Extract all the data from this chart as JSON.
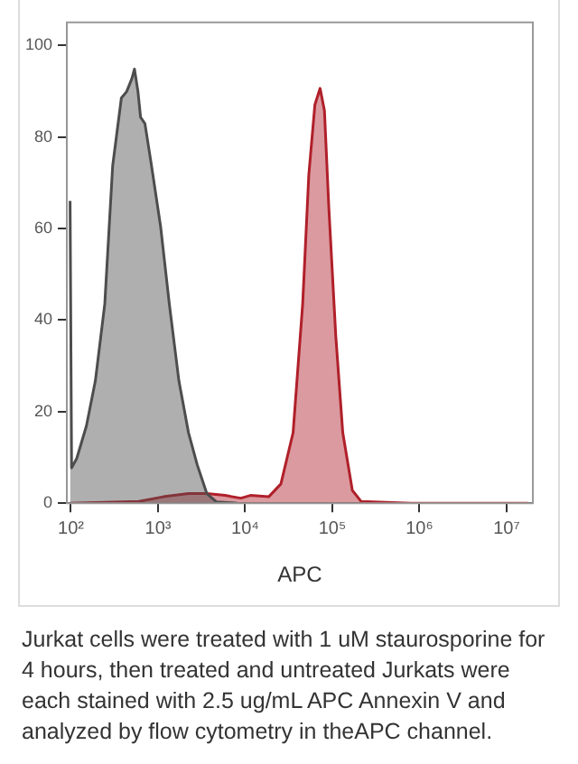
{
  "chart_data": {
    "type": "area",
    "xlabel": "APC",
    "log": "x",
    "xlim": [
      90,
      20000000
    ],
    "xticks": [
      {
        "value": 100,
        "label": "10²"
      },
      {
        "value": 1000,
        "label": "10³"
      },
      {
        "value": 10000,
        "label": "10⁴"
      },
      {
        "value": 100000,
        "label": "10⁵"
      },
      {
        "value": 1000000,
        "label": "10⁶"
      },
      {
        "value": 10000000,
        "label": "10⁷"
      }
    ],
    "ylim": [
      0,
      105
    ],
    "yticks": [
      0,
      20,
      40,
      60,
      80,
      100
    ],
    "grid": false,
    "legend": false,
    "series": [
      {
        "color": "#4d4d4d",
        "x": [
          98,
          102,
          117,
          151,
          191,
          245,
          302,
          380,
          437,
          501,
          537,
          589,
          631,
          708,
          832,
          1072,
          1349,
          1738,
          2239,
          2818,
          3631,
          4677,
          8128
        ],
        "values": [
          66,
          7.7,
          9.8,
          16.9,
          26.7,
          43.5,
          73.7,
          88.5,
          89.9,
          92.7,
          94.8,
          89.9,
          84.3,
          82.9,
          74.4,
          60.4,
          43.5,
          26.7,
          15.4,
          8.4,
          2.1,
          0.3,
          0
        ]
      },
      {
        "color": "#b0202a",
        "x": [
          98,
          603,
          1148,
          2239,
          3631,
          5888,
          8913,
          11482,
          18621,
          25704,
          35481,
          45709,
          53703,
          63096,
          72444,
          81283,
          91201,
          109648,
          131826,
          169824,
          213796,
          794328,
          17782828
        ],
        "values": [
          0,
          0.4,
          1.4,
          2.1,
          2.1,
          1.7,
          1.1,
          1.7,
          1.4,
          4.2,
          15.4,
          43.5,
          71.6,
          87,
          90.6,
          85.7,
          64.6,
          36.5,
          15.4,
          2.8,
          0.4,
          0,
          0
        ]
      }
    ],
    "annotations": [
      "Jurkat cells were treated with 1 uM staurosporine for 4 hours, then treated and untreated Jurkats were each stained with 2.5 ug/mL APC Annexin V and analyzed by flow cytometry in theAPC channel."
    ]
  }
}
